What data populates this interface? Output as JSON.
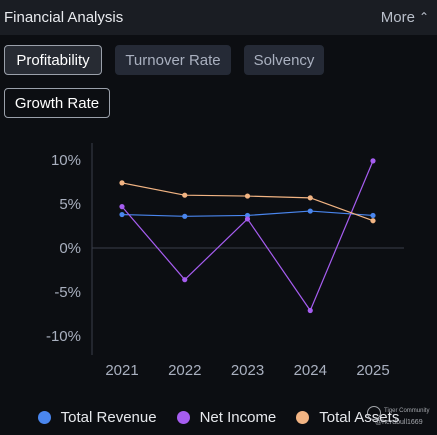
{
  "header": {
    "title": "Financial Analysis",
    "more_label": "More"
  },
  "tabs": [
    {
      "label": "Profitability",
      "state": "active"
    },
    {
      "label": "Turnover Rate",
      "state": "inactive"
    },
    {
      "label": "Solvency",
      "state": "inactive"
    },
    {
      "label": "Growth Rate",
      "state": "outline"
    }
  ],
  "colors": {
    "background": "#0c0e12",
    "header_bg": "#1a1d23",
    "total_revenue": "#4a86ee",
    "net_income": "#a65df0",
    "total_assets": "#f2b483",
    "zero_line": "#3a3f4b"
  },
  "chart_data": {
    "type": "line",
    "x": [
      "2021",
      "2022",
      "2023",
      "2024",
      "2025"
    ],
    "ylim": [
      -12,
      12
    ],
    "y_ticks": [
      10,
      5,
      0,
      -5,
      -10
    ],
    "y_tick_labels": [
      "10%",
      "5%",
      "0%",
      "-5%",
      "-10%"
    ],
    "y_unit": "%",
    "legend_position": "bottom",
    "grid": false,
    "series": [
      {
        "name": "Total Revenue",
        "color_key": "total_revenue",
        "values": [
          3.8,
          3.6,
          3.7,
          4.2,
          3.7
        ]
      },
      {
        "name": "Net Income",
        "color_key": "net_income",
        "values": [
          4.7,
          -3.6,
          3.3,
          -7.1,
          9.9
        ]
      },
      {
        "name": "Total Assets",
        "color_key": "total_assets",
        "values": [
          7.4,
          6.0,
          5.9,
          5.7,
          3.1
        ]
      }
    ]
  },
  "watermark": {
    "line1": "Tiger Community",
    "line2": "@herdbull1669"
  }
}
